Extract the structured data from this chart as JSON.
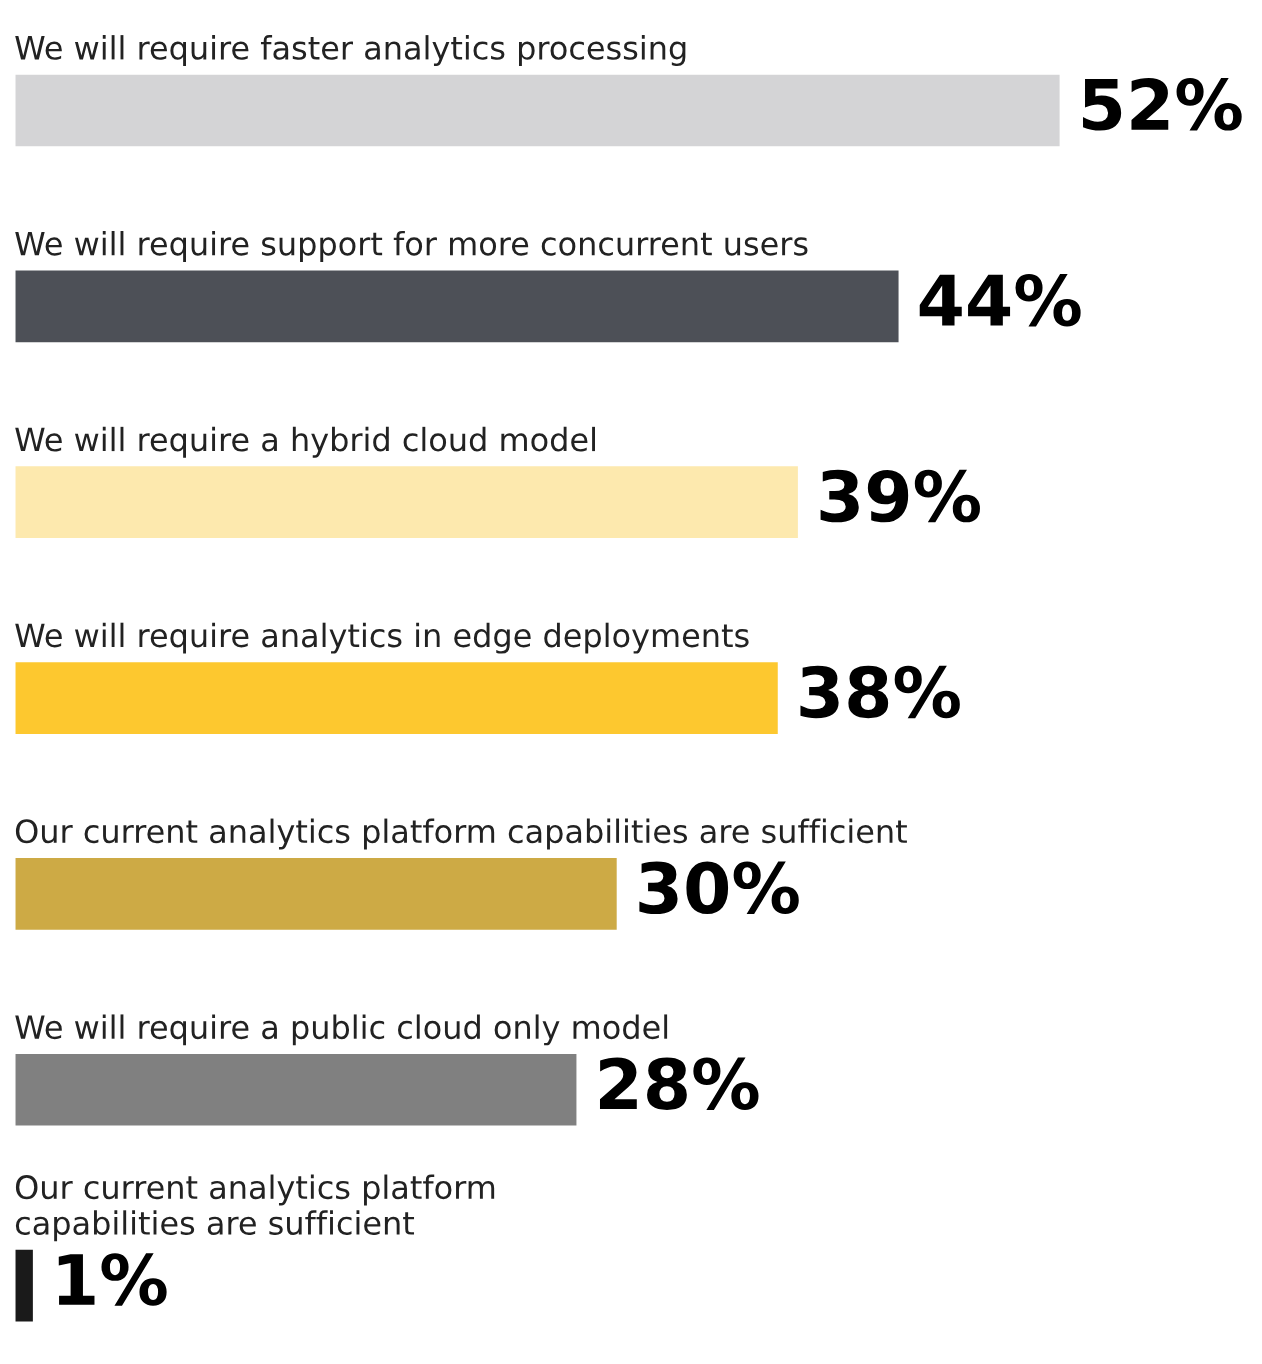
{
  "chart_data": {
    "type": "bar",
    "orientation": "horizontal",
    "categories": [
      "We will require faster analytics processing",
      "We will require support for more concurrent users",
      "We will require a hybrid cloud model",
      "We will require analytics in edge deployments",
      "Our current analytics platform capabilities are sufficient",
      "We will require a public cloud only model",
      "Our current analytics platform\ncapabilities are sufficient"
    ],
    "values": [
      52,
      44,
      39,
      38,
      30,
      28,
      1
    ],
    "colors": [
      "#d4d4d6",
      "#4d5057",
      "#fde9ae",
      "#fdc82f",
      "#cdaa45",
      "#808080",
      "#1a1a1a"
    ],
    "value_labels": [
      "52%",
      "44%",
      "39%",
      "38%",
      "30%",
      "28%",
      "1%"
    ]
  }
}
